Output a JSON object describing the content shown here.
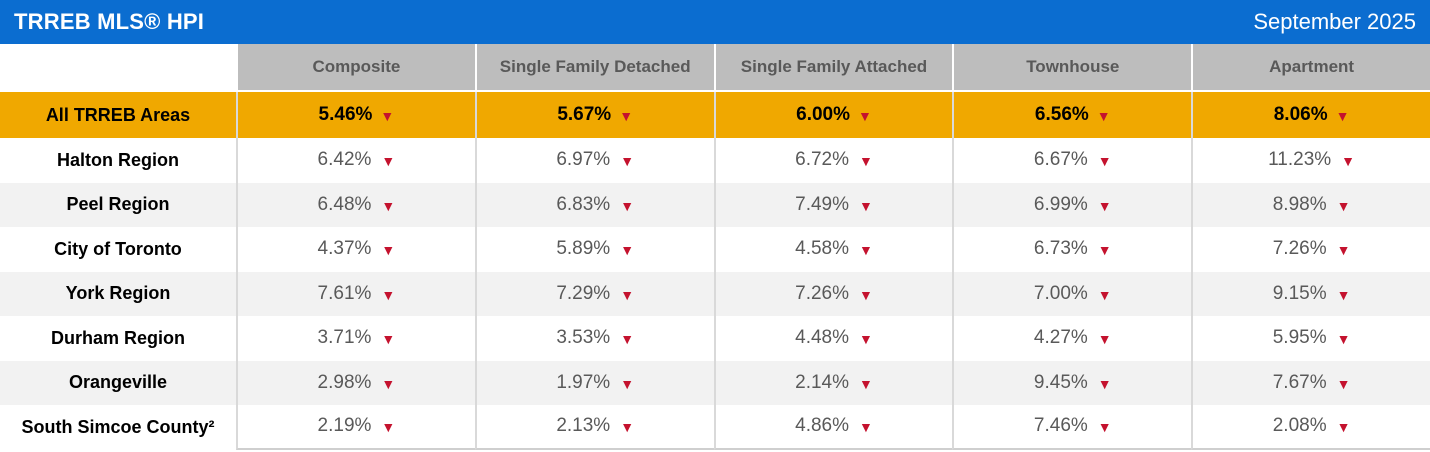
{
  "titlebar": {
    "title": "TRREB MLS® HPI",
    "period": "September 2025"
  },
  "chart_data": {
    "type": "table",
    "title": "TRREB MLS® HPI",
    "period": "September 2025",
    "columns": [
      "Composite",
      "Single Family Detached",
      "Single Family Attached",
      "Townhouse",
      "Apartment"
    ],
    "trend_icon": "▼",
    "rows": [
      {
        "label": "All TRREB Areas",
        "highlighted": true,
        "values": [
          "5.46%",
          "5.67%",
          "6.00%",
          "6.56%",
          "8.06%"
        ]
      },
      {
        "label": "Halton Region",
        "highlighted": false,
        "values": [
          "6.42%",
          "6.97%",
          "6.72%",
          "6.67%",
          "11.23%"
        ]
      },
      {
        "label": "Peel Region",
        "highlighted": false,
        "values": [
          "6.48%",
          "6.83%",
          "7.49%",
          "6.99%",
          "8.98%"
        ]
      },
      {
        "label": "City of Toronto",
        "highlighted": false,
        "values": [
          "4.37%",
          "5.89%",
          "4.58%",
          "6.73%",
          "7.26%"
        ]
      },
      {
        "label": "York Region",
        "highlighted": false,
        "values": [
          "7.61%",
          "7.29%",
          "7.26%",
          "7.00%",
          "9.15%"
        ]
      },
      {
        "label": "Durham Region",
        "highlighted": false,
        "values": [
          "3.71%",
          "3.53%",
          "4.48%",
          "4.27%",
          "5.95%"
        ]
      },
      {
        "label": "Orangeville",
        "highlighted": false,
        "values": [
          "2.98%",
          "1.97%",
          "2.14%",
          "9.45%",
          "7.67%"
        ]
      },
      {
        "label": "South Simcoe County²",
        "highlighted": false,
        "values": [
          "2.19%",
          "2.13%",
          "4.86%",
          "7.46%",
          "2.08%"
        ]
      }
    ]
  },
  "colors": {
    "titlebar_bg": "#0b6dd0",
    "highlight_bg": "#f0a800",
    "header_bg": "#bdbdbd",
    "header_text": "#595959",
    "value_text": "#595959",
    "alt_row_bg": "#f2f2f2",
    "trend_down_red": "#c4122e",
    "divider": "#d9d9d9"
  }
}
